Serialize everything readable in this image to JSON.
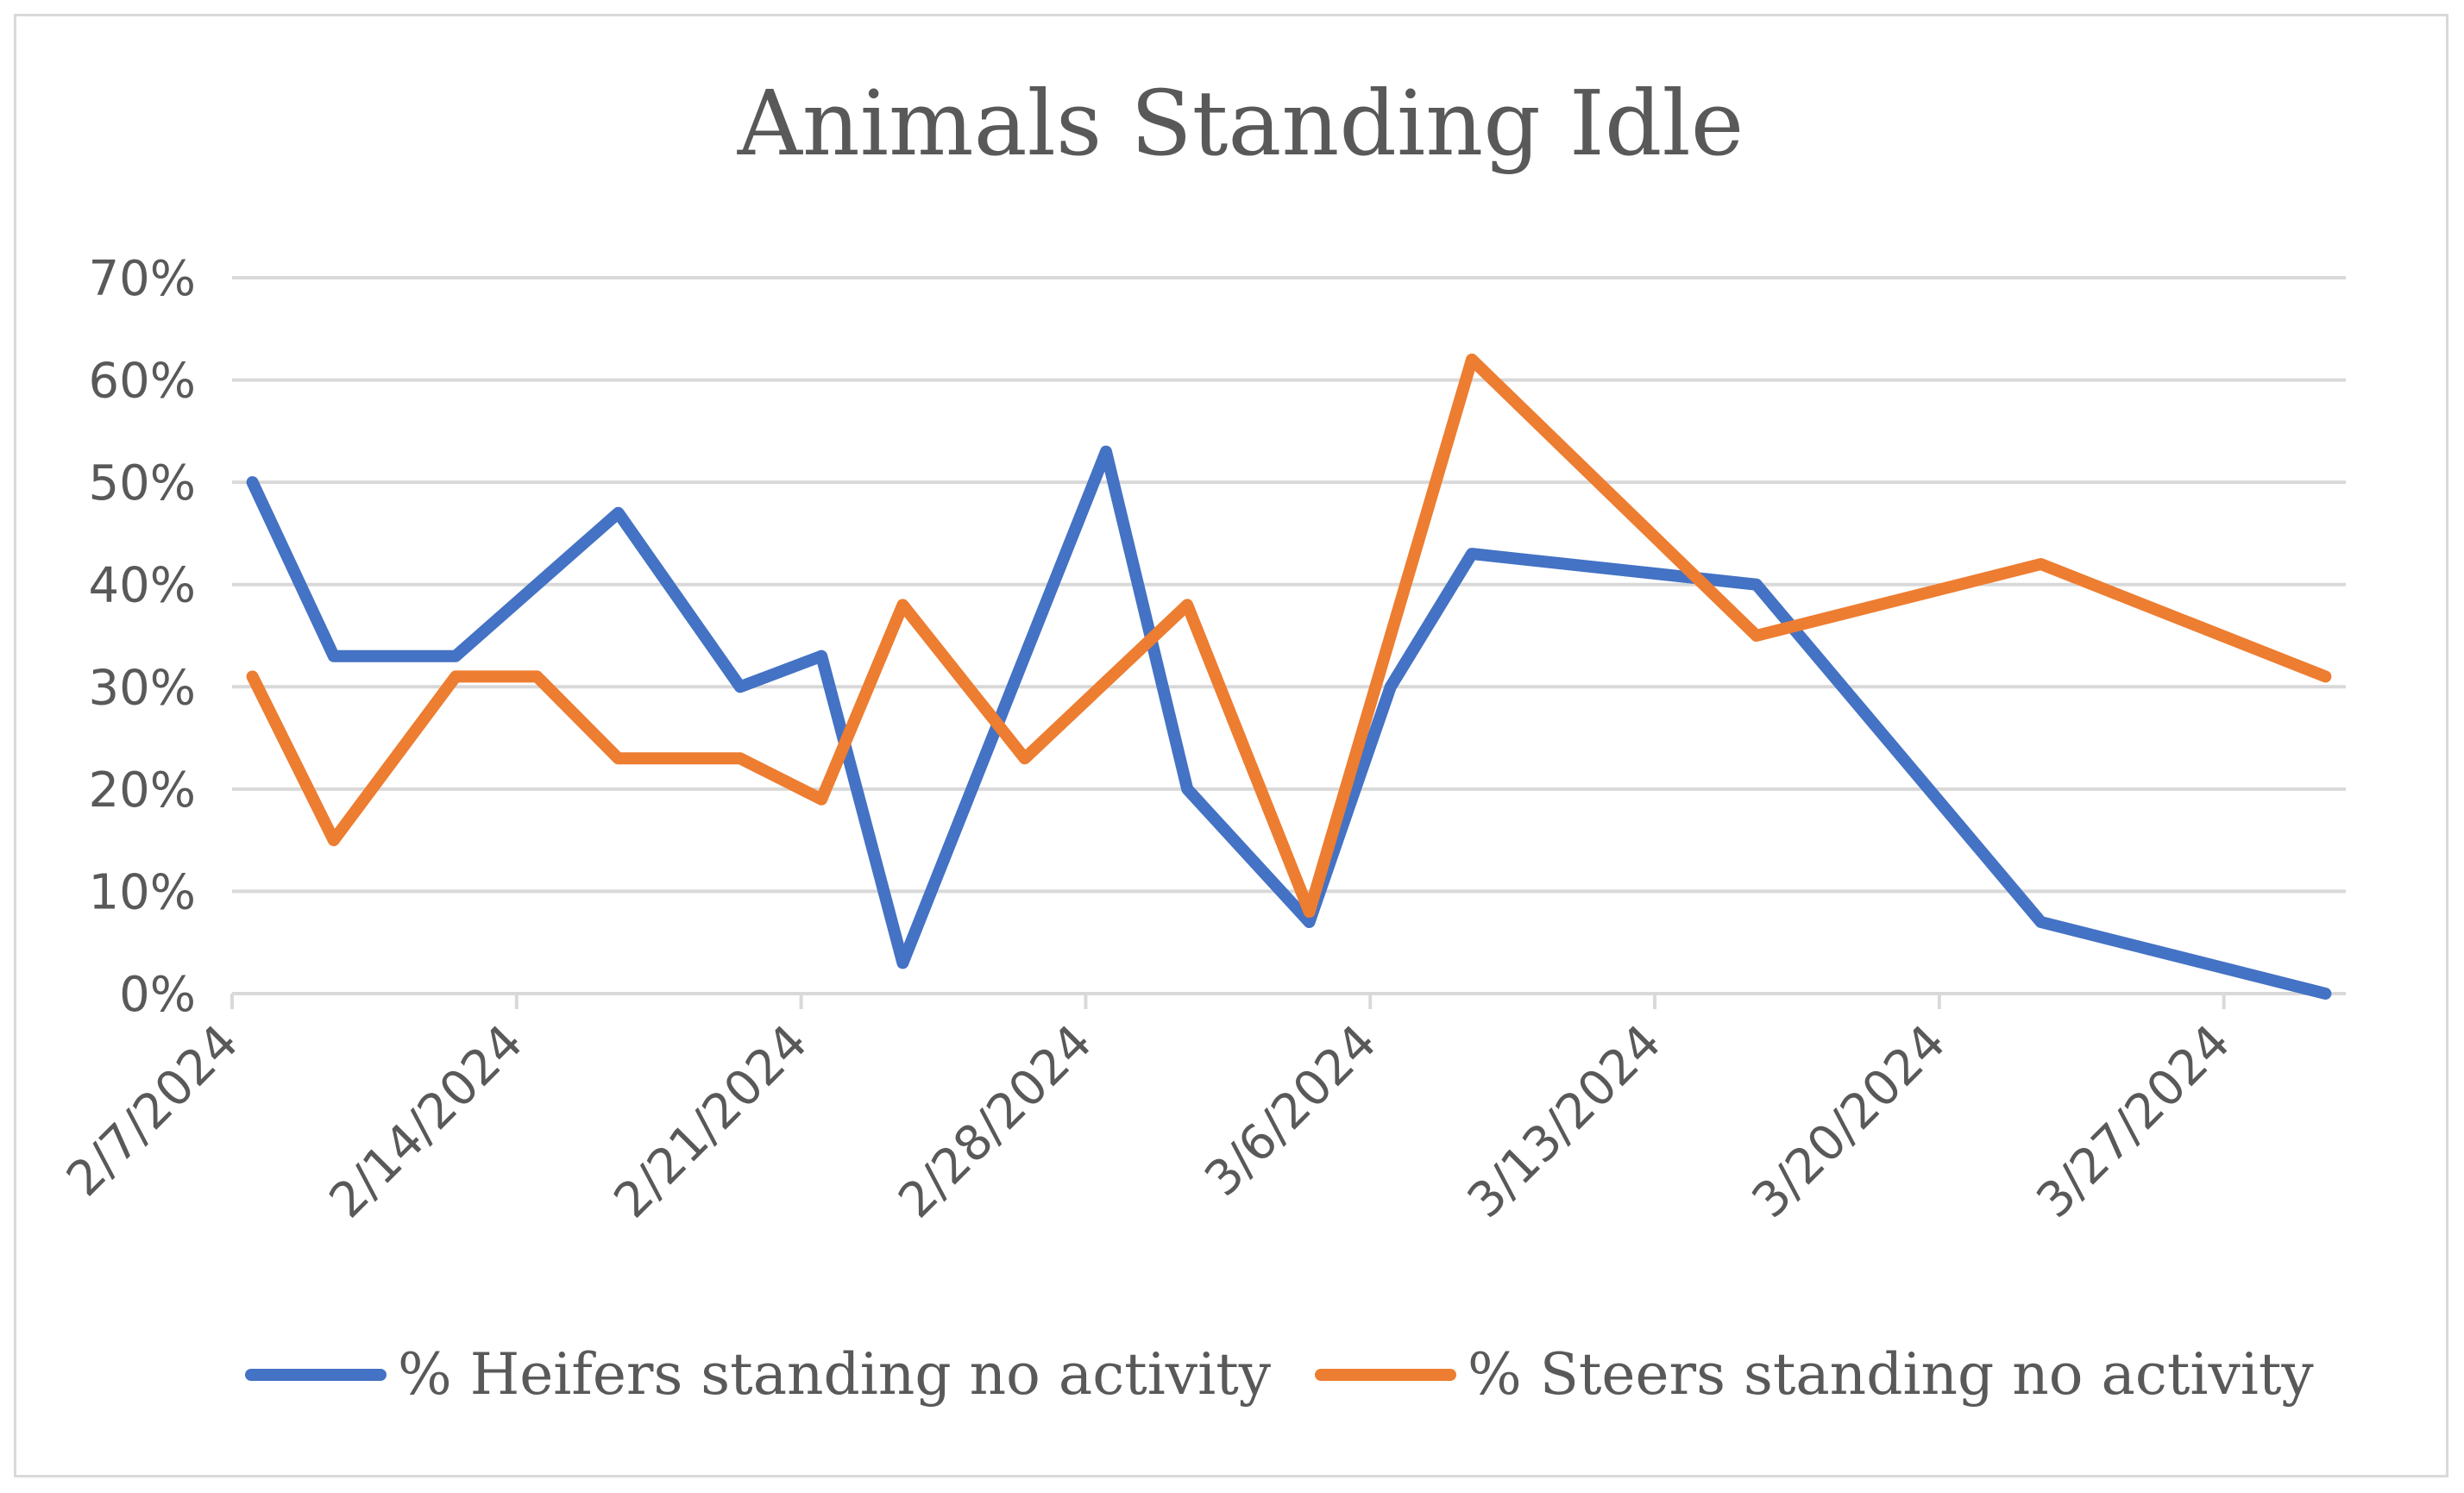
{
  "chart_data": {
    "type": "line",
    "title": "Animals Standing Idle",
    "xlabel": "",
    "ylabel": "",
    "ylim": [
      0,
      0.7
    ],
    "y_ticks": [
      0,
      0.1,
      0.2,
      0.3,
      0.4,
      0.5,
      0.6,
      0.7
    ],
    "y_tick_labels": [
      "0%",
      "10%",
      "20%",
      "30%",
      "40%",
      "50%",
      "60%",
      "70%"
    ],
    "x_range_days": [
      0,
      52
    ],
    "x_ticks": [
      {
        "day": 0,
        "label": "2/7/2024"
      },
      {
        "day": 7,
        "label": "2/14/2024"
      },
      {
        "day": 14,
        "label": "2/21/2024"
      },
      {
        "day": 21,
        "label": "2/28/2024"
      },
      {
        "day": 28,
        "label": "3/6/2024"
      },
      {
        "day": 35,
        "label": "3/13/2024"
      },
      {
        "day": 42,
        "label": "3/20/2024"
      },
      {
        "day": 49,
        "label": "3/27/2024"
      }
    ],
    "x": [
      0.5,
      2.5,
      5.5,
      7.5,
      9.5,
      12.5,
      14.5,
      16.5,
      19.5,
      21.5,
      23.5,
      26.5,
      28.5,
      30.5,
      37.5,
      44.5,
      51.5
    ],
    "series": [
      {
        "name": "% Heifers standing no activity",
        "color": "#4472C4",
        "values": [
          0.5,
          0.33,
          0.33,
          null,
          0.47,
          0.3,
          0.33,
          0.03,
          null,
          0.53,
          0.2,
          0.07,
          0.3,
          0.43,
          0.4,
          0.07,
          0.0
        ]
      },
      {
        "name": "% Steers standing no activity",
        "color": "#ED7D31",
        "values": [
          0.31,
          0.15,
          0.31,
          0.31,
          0.23,
          0.23,
          0.19,
          0.38,
          0.23,
          null,
          0.38,
          0.08,
          null,
          0.62,
          0.35,
          0.42,
          0.31
        ]
      }
    ],
    "legend_position": "bottom",
    "grid": true
  }
}
